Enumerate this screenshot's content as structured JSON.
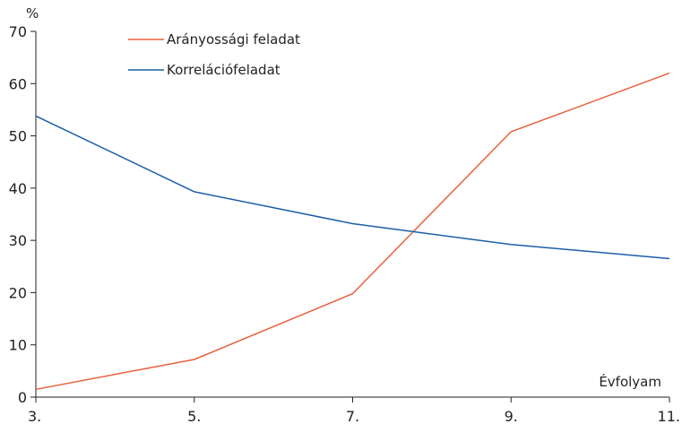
{
  "chart_data": {
    "type": "line",
    "title": "",
    "ylabel": "%",
    "xlabel": "Évfolyam",
    "ylim": [
      0,
      70
    ],
    "yticks": [
      "0",
      "10",
      "20",
      "30",
      "40",
      "50",
      "60",
      "70"
    ],
    "categories": [
      "3.",
      "5.",
      "7.",
      "9.",
      "11."
    ],
    "grid": false,
    "legend_position": "top-left",
    "series": [
      {
        "name": "Arányossági feladat",
        "color": "#e8603c",
        "values": [
          1.5,
          7.2,
          19.8,
          50.8,
          62.0
        ]
      },
      {
        "name": "Korrelációfeladat",
        "color": "#1a5fa6",
        "values": [
          53.8,
          39.3,
          33.2,
          29.2,
          26.5
        ]
      }
    ]
  }
}
